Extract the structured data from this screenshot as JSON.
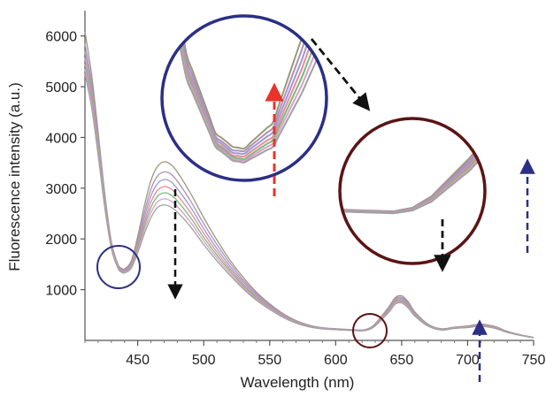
{
  "chart_data": {
    "type": "line",
    "title": "",
    "xlabel": "Wavelength (nm)",
    "ylabel": "Fluorescence intensity (a.u.)",
    "xlim": [
      410,
      750
    ],
    "ylim": [
      0,
      6500
    ],
    "x_ticks": [
      450,
      500,
      550,
      600,
      650,
      700,
      750
    ],
    "y_ticks": [
      1000,
      2000,
      3000,
      4000,
      5000,
      6000
    ],
    "x_tick_labels": [
      "450",
      "500",
      "550",
      "600",
      "650",
      "700",
      "750"
    ],
    "y_tick_labels": [
      "1000",
      "2000",
      "3000",
      "4000",
      "5000",
      "6000"
    ],
    "grid": false,
    "legend": "none",
    "x": [
      410,
      415,
      420,
      425,
      430,
      435,
      438,
      440,
      445,
      450,
      455,
      460,
      465,
      470,
      475,
      480,
      490,
      500,
      510,
      520,
      530,
      540,
      550,
      560,
      570,
      580,
      590,
      600,
      610,
      620,
      625,
      630,
      640,
      645,
      650,
      655,
      660,
      670,
      680,
      690,
      700,
      710,
      720,
      730,
      740,
      750
    ],
    "series": [
      {
        "color": "#9a9a7a",
        "values": [
          6080,
          5250,
          4100,
          2900,
          1950,
          1500,
          1420,
          1410,
          1560,
          2050,
          2650,
          3150,
          3430,
          3520,
          3470,
          3320,
          2900,
          2420,
          1980,
          1580,
          1240,
          950,
          720,
          530,
          390,
          300,
          250,
          230,
          215,
          205,
          235,
          330,
          650,
          840,
          880,
          760,
          560,
          320,
          230,
          260,
          285,
          320,
          280,
          180,
          110,
          60
        ]
      },
      {
        "color": "#b08fb8",
        "values": [
          5850,
          5080,
          3990,
          2840,
          1920,
          1480,
          1400,
          1395,
          1530,
          1980,
          2520,
          2980,
          3240,
          3320,
          3280,
          3140,
          2750,
          2300,
          1890,
          1520,
          1190,
          920,
          700,
          515,
          380,
          292,
          245,
          226,
          212,
          202,
          230,
          320,
          630,
          815,
          850,
          735,
          545,
          312,
          225,
          255,
          278,
          310,
          272,
          175,
          108,
          58
        ]
      },
      {
        "color": "#9a9ad2",
        "values": [
          5700,
          4960,
          3910,
          2790,
          1890,
          1465,
          1385,
          1380,
          1505,
          1920,
          2420,
          2850,
          3090,
          3170,
          3130,
          2990,
          2630,
          2200,
          1810,
          1460,
          1150,
          890,
          680,
          500,
          370,
          285,
          240,
          222,
          209,
          199,
          226,
          312,
          610,
          790,
          825,
          712,
          530,
          305,
          220,
          250,
          272,
          302,
          265,
          171,
          106,
          57
        ]
      },
      {
        "color": "#e88a9a",
        "values": [
          5560,
          4850,
          3830,
          2740,
          1870,
          1450,
          1370,
          1365,
          1480,
          1870,
          2330,
          2730,
          2960,
          3030,
          2990,
          2860,
          2520,
          2110,
          1740,
          1410,
          1110,
          860,
          660,
          487,
          362,
          279,
          236,
          219,
          206,
          196,
          222,
          305,
          592,
          768,
          800,
          690,
          516,
          298,
          216,
          246,
          267,
          295,
          258,
          168,
          104,
          56
        ]
      },
      {
        "color": "#7ab87a",
        "values": [
          5450,
          4760,
          3770,
          2700,
          1850,
          1440,
          1360,
          1350,
          1460,
          1820,
          2250,
          2620,
          2840,
          2910,
          2870,
          2750,
          2420,
          2030,
          1680,
          1365,
          1075,
          835,
          642,
          475,
          354,
          274,
          233,
          216,
          203,
          193,
          218,
          298,
          575,
          748,
          778,
          672,
          503,
          292,
          212,
          242,
          262,
          288,
          252,
          165,
          102,
          55
        ]
      },
      {
        "color": "#d8a0c8",
        "values": [
          5350,
          4680,
          3710,
          2660,
          1830,
          1430,
          1350,
          1340,
          1440,
          1775,
          2175,
          2520,
          2730,
          2790,
          2750,
          2640,
          2330,
          1960,
          1625,
          1320,
          1045,
          812,
          626,
          465,
          347,
          270,
          230,
          214,
          201,
          191,
          215,
          292,
          560,
          730,
          758,
          655,
          491,
          287,
          209,
          239,
          258,
          282,
          247,
          162,
          100,
          54
        ]
      },
      {
        "color": "#a0a0a0",
        "values": [
          5250,
          4600,
          3650,
          2620,
          1810,
          1420,
          1340,
          1330,
          1420,
          1730,
          2100,
          2420,
          2620,
          2670,
          2630,
          2530,
          2240,
          1890,
          1570,
          1280,
          1015,
          790,
          610,
          455,
          340,
          266,
          227,
          212,
          199,
          189,
          212,
          286,
          545,
          712,
          738,
          638,
          480,
          282,
          206,
          236,
          254,
          276,
          242,
          159,
          98,
          53
        ]
      }
    ],
    "annotations": {
      "arrows": [
        {
          "style": "dashed",
          "color": "#111111",
          "direction": "down",
          "at_x": 478,
          "from_y": 3100,
          "to_y": 600
        },
        {
          "style": "dashed",
          "color": "#e8342a",
          "direction": "up",
          "inset": "left"
        },
        {
          "style": "dashed",
          "color": "#111111",
          "direction": "right-down",
          "between": "insets"
        },
        {
          "style": "dashed",
          "color": "#111111",
          "direction": "down",
          "inset": "right"
        },
        {
          "style": "dashed",
          "color": "#2b2f86",
          "direction": "up",
          "at_x": 745,
          "from_y": 1250,
          "to_y": 3100
        },
        {
          "style": "dashed",
          "color": "#2b2f86",
          "direction": "up",
          "at_x": 709,
          "from_y": -1300,
          "to_y": 300
        }
      ],
      "circles": [
        {
          "color": "#2b2f86",
          "center_x": 440,
          "center_y": 1380
        },
        {
          "color": "#5b1414",
          "center_x": 625,
          "center_y": 260
        }
      ]
    },
    "insets": [
      {
        "name": "left-zoom",
        "color": "#2b2f86",
        "region_x": [
          425,
          455
        ]
      },
      {
        "name": "right-zoom",
        "color": "#5b1414",
        "region_x": [
          605,
          645
        ]
      }
    ]
  },
  "colors": {
    "axis": "#555555",
    "circle_blue": "#2b2f86",
    "circle_red": "#5b1414",
    "arrow_red": "#e8342a",
    "arrow_blue": "#2b2f86",
    "arrow_black": "#111111"
  }
}
